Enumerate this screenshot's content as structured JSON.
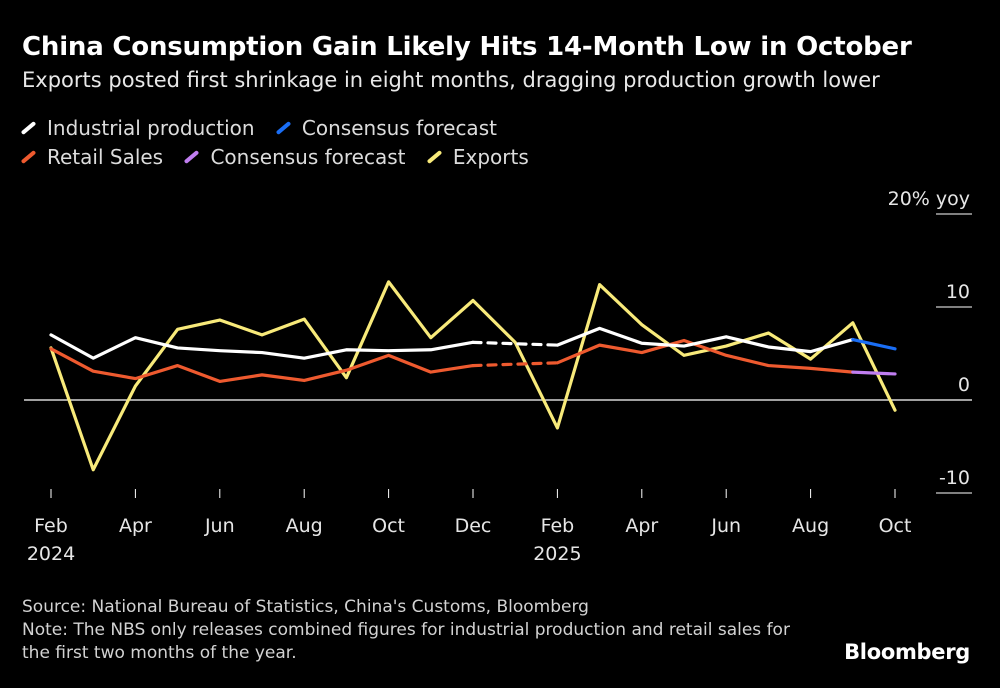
{
  "header": {
    "title": "China Consumption Gain Likely Hits 14-Month Low in October",
    "subtitle": "Exports posted first shrinkage in eight months, dragging production growth lower"
  },
  "footer": {
    "source": "Source: National Bureau of Statistics, China's Customs, Bloomberg",
    "note": "Note: The NBS only releases combined figures for industrial production and retail sales for the first two months of the year.",
    "brand": "Bloomberg"
  },
  "colors": {
    "background": "#000000",
    "industrial_production": "#ffffff",
    "consensus_ip": "#1a6ef5",
    "retail_sales": "#ee5a2f",
    "consensus_retail": "#c07ef0",
    "exports": "#f8ea7a",
    "zero_line": "#ffffff",
    "axis_text": "#e6e6e6"
  },
  "chart_data": {
    "type": "line",
    "title": "China Consumption Gain Likely Hits 14-Month Low in October",
    "subtitle": "Exports posted first shrinkage in eight months, dragging production growth lower",
    "y_unit_label": "20% yoy",
    "ylim": [
      -10,
      20
    ],
    "y_ticks": [
      {
        "value": 20,
        "label": "20% yoy"
      },
      {
        "value": 10,
        "label": "10"
      },
      {
        "value": 0,
        "label": "0"
      },
      {
        "value": -10,
        "label": "-10"
      }
    ],
    "x": [
      "2024-02",
      "2024-03",
      "2024-04",
      "2024-05",
      "2024-06",
      "2024-07",
      "2024-08",
      "2024-09",
      "2024-10",
      "2024-11",
      "2024-12",
      "2025-01",
      "2025-02",
      "2025-03",
      "2025-04",
      "2025-05",
      "2025-06",
      "2025-07",
      "2025-08",
      "2025-09",
      "2025-10"
    ],
    "x_ticks": [
      {
        "x": "2024-02",
        "label": "Feb",
        "year": "2024"
      },
      {
        "x": "2024-04",
        "label": "Apr",
        "year": ""
      },
      {
        "x": "2024-06",
        "label": "Jun",
        "year": ""
      },
      {
        "x": "2024-08",
        "label": "Aug",
        "year": ""
      },
      {
        "x": "2024-10",
        "label": "Oct",
        "year": ""
      },
      {
        "x": "2024-12",
        "label": "Dec",
        "year": ""
      },
      {
        "x": "2025-02",
        "label": "Feb",
        "year": "2025"
      },
      {
        "x": "2025-04",
        "label": "Apr",
        "year": ""
      },
      {
        "x": "2025-06",
        "label": "Jun",
        "year": ""
      },
      {
        "x": "2025-08",
        "label": "Aug",
        "year": ""
      },
      {
        "x": "2025-10",
        "label": "Oct",
        "year": ""
      }
    ],
    "series": [
      {
        "name": "Exports",
        "color": "#f8ea7a",
        "points": [
          {
            "x": "2024-02",
            "y": 5.6
          },
          {
            "x": "2024-03",
            "y": -7.5
          },
          {
            "x": "2024-04",
            "y": 1.5
          },
          {
            "x": "2024-05",
            "y": 7.6
          },
          {
            "x": "2024-06",
            "y": 8.6
          },
          {
            "x": "2024-07",
            "y": 7.0
          },
          {
            "x": "2024-08",
            "y": 8.7
          },
          {
            "x": "2024-09",
            "y": 2.4
          },
          {
            "x": "2024-10",
            "y": 12.7
          },
          {
            "x": "2024-11",
            "y": 6.7
          },
          {
            "x": "2024-12",
            "y": 10.7
          },
          {
            "x": "2025-01",
            "y": 6.2
          },
          {
            "x": "2025-02",
            "y": -3.0
          },
          {
            "x": "2025-03",
            "y": 12.4
          },
          {
            "x": "2025-04",
            "y": 8.1
          },
          {
            "x": "2025-05",
            "y": 4.8
          },
          {
            "x": "2025-06",
            "y": 5.8
          },
          {
            "x": "2025-07",
            "y": 7.2
          },
          {
            "x": "2025-08",
            "y": 4.4
          },
          {
            "x": "2025-09",
            "y": 8.3
          },
          {
            "x": "2025-10",
            "y": -1.1
          }
        ]
      },
      {
        "name": "Retail Sales",
        "color": "#ee5a2f",
        "points": [
          {
            "x": "2024-02",
            "y": 5.5
          },
          {
            "x": "2024-03",
            "y": 3.1
          },
          {
            "x": "2024-04",
            "y": 2.3
          },
          {
            "x": "2024-05",
            "y": 3.7
          },
          {
            "x": "2024-06",
            "y": 2.0
          },
          {
            "x": "2024-07",
            "y": 2.7
          },
          {
            "x": "2024-08",
            "y": 2.1
          },
          {
            "x": "2024-09",
            "y": 3.2
          },
          {
            "x": "2024-10",
            "y": 4.8
          },
          {
            "x": "2024-11",
            "y": 3.0
          },
          {
            "x": "2024-12",
            "y": 3.7
          },
          {
            "x": "2025-01",
            "y": null
          },
          {
            "x": "2025-02",
            "y": 4.0
          },
          {
            "x": "2025-03",
            "y": 5.9
          },
          {
            "x": "2025-04",
            "y": 5.1
          },
          {
            "x": "2025-05",
            "y": 6.4
          },
          {
            "x": "2025-06",
            "y": 4.8
          },
          {
            "x": "2025-07",
            "y": 3.7
          },
          {
            "x": "2025-08",
            "y": 3.4
          },
          {
            "x": "2025-09",
            "y": 3.0
          }
        ]
      },
      {
        "name": "Consensus forecast",
        "color": "#c07ef0",
        "points": [
          {
            "x": "2025-09",
            "y": 3.0
          },
          {
            "x": "2025-10",
            "y": 2.8
          }
        ]
      },
      {
        "name": "Industrial production",
        "color": "#ffffff",
        "points": [
          {
            "x": "2024-02",
            "y": 7.0
          },
          {
            "x": "2024-03",
            "y": 4.5
          },
          {
            "x": "2024-04",
            "y": 6.7
          },
          {
            "x": "2024-05",
            "y": 5.6
          },
          {
            "x": "2024-06",
            "y": 5.3
          },
          {
            "x": "2024-07",
            "y": 5.1
          },
          {
            "x": "2024-08",
            "y": 4.5
          },
          {
            "x": "2024-09",
            "y": 5.4
          },
          {
            "x": "2024-10",
            "y": 5.3
          },
          {
            "x": "2024-11",
            "y": 5.4
          },
          {
            "x": "2024-12",
            "y": 6.2
          },
          {
            "x": "2025-01",
            "y": null
          },
          {
            "x": "2025-02",
            "y": 5.9
          },
          {
            "x": "2025-03",
            "y": 7.7
          },
          {
            "x": "2025-04",
            "y": 6.1
          },
          {
            "x": "2025-05",
            "y": 5.8
          },
          {
            "x": "2025-06",
            "y": 6.8
          },
          {
            "x": "2025-07",
            "y": 5.7
          },
          {
            "x": "2025-08",
            "y": 5.2
          },
          {
            "x": "2025-09",
            "y": 6.5
          }
        ]
      },
      {
        "name": "Consensus forecast",
        "color": "#1a6ef5",
        "points": [
          {
            "x": "2025-09",
            "y": 6.5
          },
          {
            "x": "2025-10",
            "y": 5.5
          }
        ]
      }
    ],
    "legend": {
      "placement": "top-left",
      "entries": [
        {
          "label": "Industrial production",
          "color": "#ffffff"
        },
        {
          "label": "Consensus forecast",
          "color": "#1a6ef5"
        },
        {
          "label": "Retail Sales",
          "color": "#ee5a2f"
        },
        {
          "label": "Consensus forecast",
          "color": "#c07ef0"
        },
        {
          "label": "Exports",
          "color": "#f8ea7a"
        }
      ]
    },
    "grid": false
  }
}
